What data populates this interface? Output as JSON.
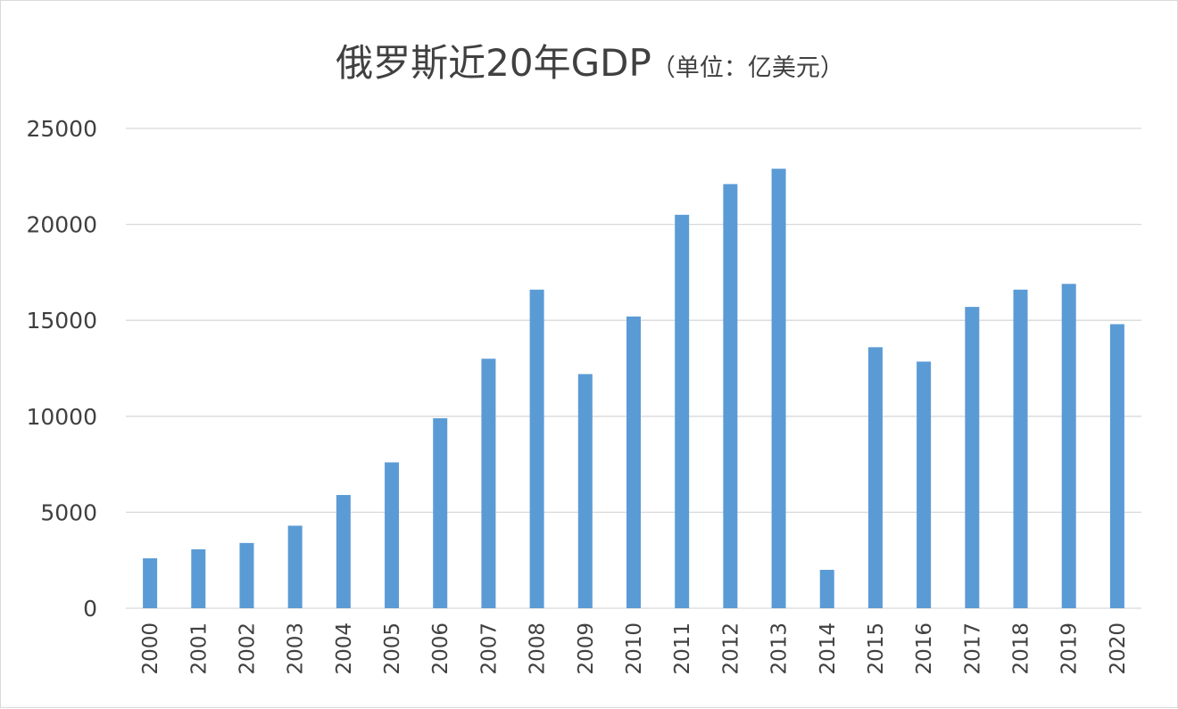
{
  "chart_data": {
    "type": "bar",
    "title": "俄罗斯近20年GDP",
    "subtitle": "（单位：亿美元）",
    "xlabel": "",
    "ylabel": "",
    "ylim": [
      0,
      25000
    ],
    "yticks": [
      0,
      5000,
      10000,
      15000,
      20000,
      25000
    ],
    "grid": true,
    "categories": [
      "2000",
      "2001",
      "2002",
      "2003",
      "2004",
      "2005",
      "2006",
      "2007",
      "2008",
      "2009",
      "2010",
      "2011",
      "2012",
      "2013",
      "2014",
      "2015",
      "2016",
      "2017",
      "2018",
      "2019",
      "2020"
    ],
    "values": [
      2600,
      3070,
      3400,
      4300,
      5900,
      7600,
      9900,
      13000,
      16600,
      12200,
      15200,
      20500,
      22100,
      22900,
      2000,
      13600,
      12850,
      15700,
      16600,
      16900,
      14800
    ],
    "colors": {
      "bar": "#5b9bd5",
      "grid": "#d9d9d9",
      "text": "#404040"
    }
  }
}
